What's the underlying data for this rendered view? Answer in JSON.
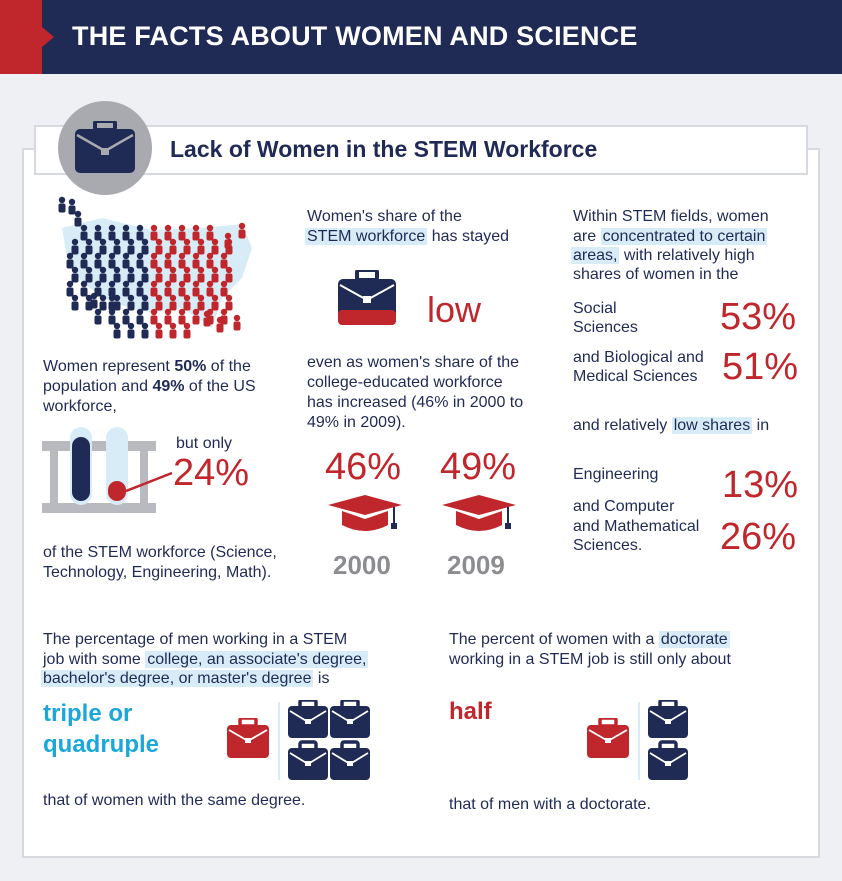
{
  "header": {
    "title": "THE FACTS ABOUT WOMEN AND SCIENCE"
  },
  "section": {
    "title": "Lack of Women in the STEM Workforce"
  },
  "col1": {
    "line1_pre": "Women represent ",
    "line1_bold": "50%",
    "line1_post": " of the",
    "line2_pre": "population and ",
    "line2_bold": "49%",
    "line2_post": " of the US",
    "line3": "workforce,",
    "but_only": "but only",
    "pct": "24%",
    "footer1": "of the STEM workforce (Science,",
    "footer2": "Technology, Engineering, Math)."
  },
  "col2": {
    "line1": "Women's share of the",
    "line2_hl": "STEM workforce",
    "line2_post": " has stayed",
    "low": "low",
    "body1": "even as women's share of the",
    "body2": "college-educated workforce",
    "body3": "has increased (46% in 2000 to",
    "body4": "49% in 2009).",
    "pct_2000": "46%",
    "pct_2009": "49%",
    "year_2000": "2000",
    "year_2009": "2009"
  },
  "col3": {
    "line1": "Within STEM fields, women",
    "line2_pre": "are ",
    "line2_hl": "concentrated to certain",
    "line3_hl": "areas,",
    "line3_post": " with relatively high",
    "line4": "shares of women in the",
    "social1": "Social",
    "social2": "Sciences",
    "social_pct": "53%",
    "bio1": "and Biological and",
    "bio2": "Medical Sciences",
    "bio_pct": "51%",
    "low_pre": "and relatively ",
    "low_hl": "low shares",
    "low_post": " in",
    "eng": "Engineering",
    "eng_pct": "13%",
    "comp1": "and Computer",
    "comp2": "and Mathematical",
    "comp3": "Sciences.",
    "comp_pct": "26%"
  },
  "bottom_left": {
    "line1": "The percentage of men working in a STEM",
    "line2_pre": "job with some ",
    "line2_hl": "college, an associate's degree,",
    "line3_hl": "bachelor's degree, or master's degree",
    "line3_post": " is",
    "big1": "triple or",
    "big2": "quadruple",
    "footer": "that of women with the same degree."
  },
  "bottom_right": {
    "line1_pre": "The percent of women with a ",
    "line1_hl": "doctorate",
    "line2": "working in a STEM job is still only about",
    "big": "half",
    "footer": "that of men with a doctorate."
  },
  "colors": {
    "navy": "#1f2a55",
    "red": "#c0272d",
    "blue": "#1aa7dc",
    "gray": "#8c8d91"
  }
}
